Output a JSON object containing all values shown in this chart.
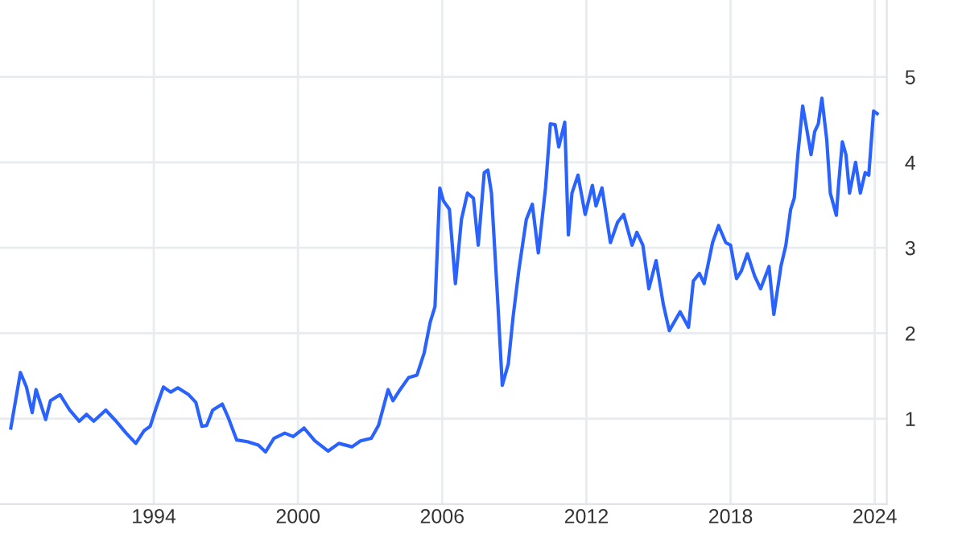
{
  "chart_data": {
    "type": "line",
    "xlim": [
      1987.6,
      2024.5
    ],
    "ylim": [
      0,
      5.9
    ],
    "xticks": [
      1994,
      2000,
      2006,
      2012,
      2018,
      2024
    ],
    "yticks": [
      1,
      2,
      3,
      4,
      5
    ],
    "grid": true,
    "legend": false,
    "marker": "none",
    "line_style": "solid",
    "series": [
      {
        "color": "#2962ff",
        "x": [
          1988.05,
          1988.45,
          1988.7,
          1988.94,
          1989.1,
          1989.5,
          1989.7,
          1990.1,
          1990.5,
          1990.9,
          1991.2,
          1991.5,
          1992.0,
          1992.4,
          1992.85,
          1993.25,
          1993.6,
          1993.85,
          1994.1,
          1994.4,
          1994.7,
          1995.0,
          1995.45,
          1995.75,
          1996.0,
          1996.2,
          1996.45,
          1996.85,
          1997.1,
          1997.45,
          1997.9,
          1998.35,
          1998.65,
          1999.0,
          1999.45,
          1999.8,
          2000.25,
          2000.7,
          2001.25,
          2001.7,
          2002.25,
          2002.6,
          2003.05,
          2003.35,
          2003.75,
          2003.95,
          2004.25,
          2004.6,
          2004.95,
          2005.25,
          2005.5,
          2005.7,
          2005.9,
          2006.05,
          2006.3,
          2006.55,
          2006.8,
          2007.05,
          2007.3,
          2007.5,
          2007.75,
          2007.9,
          2008.05,
          2008.3,
          2008.5,
          2008.75,
          2008.95,
          2009.2,
          2009.5,
          2009.75,
          2010.0,
          2010.3,
          2010.5,
          2010.7,
          2010.85,
          2011.1,
          2011.25,
          2011.4,
          2011.65,
          2011.95,
          2012.25,
          2012.4,
          2012.65,
          2013.0,
          2013.3,
          2013.55,
          2013.9,
          2014.1,
          2014.35,
          2014.6,
          2014.9,
          2015.2,
          2015.45,
          2015.9,
          2016.25,
          2016.45,
          2016.7,
          2016.9,
          2017.25,
          2017.5,
          2017.8,
          2018.0,
          2018.25,
          2018.45,
          2018.7,
          2019.0,
          2019.25,
          2019.6,
          2019.8,
          2020.1,
          2020.3,
          2020.5,
          2020.65,
          2020.8,
          2021.0,
          2021.15,
          2021.35,
          2021.5,
          2021.65,
          2021.8,
          2022.0,
          2022.15,
          2022.4,
          2022.5,
          2022.65,
          2022.8,
          2022.95,
          2023.2,
          2023.4,
          2023.6,
          2023.75,
          2023.95,
          2024.1
        ],
        "values": [
          0.89,
          1.54,
          1.37,
          1.07,
          1.34,
          0.99,
          1.21,
          1.28,
          1.1,
          0.97,
          1.05,
          0.97,
          1.1,
          0.98,
          0.83,
          0.71,
          0.86,
          0.91,
          1.13,
          1.37,
          1.31,
          1.36,
          1.28,
          1.19,
          0.91,
          0.92,
          1.1,
          1.17,
          1.01,
          0.75,
          0.73,
          0.69,
          0.61,
          0.77,
          0.83,
          0.79,
          0.89,
          0.74,
          0.62,
          0.71,
          0.67,
          0.74,
          0.77,
          0.92,
          1.34,
          1.21,
          1.34,
          1.48,
          1.51,
          1.77,
          2.13,
          2.31,
          3.7,
          3.55,
          3.45,
          2.58,
          3.33,
          3.64,
          3.58,
          3.03,
          3.88,
          3.91,
          3.64,
          2.43,
          1.39,
          1.64,
          2.19,
          2.76,
          3.33,
          3.51,
          2.94,
          3.7,
          4.45,
          4.44,
          4.18,
          4.47,
          3.15,
          3.64,
          3.85,
          3.39,
          3.73,
          3.49,
          3.7,
          3.06,
          3.3,
          3.39,
          3.03,
          3.18,
          3.03,
          2.52,
          2.85,
          2.34,
          2.03,
          2.25,
          2.07,
          2.61,
          2.7,
          2.58,
          3.06,
          3.26,
          3.06,
          3.03,
          2.64,
          2.73,
          2.93,
          2.67,
          2.52,
          2.78,
          2.22,
          2.79,
          3.03,
          3.45,
          3.58,
          4.09,
          4.66,
          4.42,
          4.09,
          4.36,
          4.45,
          4.75,
          4.27,
          3.64,
          3.38,
          3.76,
          4.24,
          4.09,
          3.64,
          4.0,
          3.64,
          3.88,
          3.85,
          4.6,
          4.57
        ]
      }
    ]
  }
}
